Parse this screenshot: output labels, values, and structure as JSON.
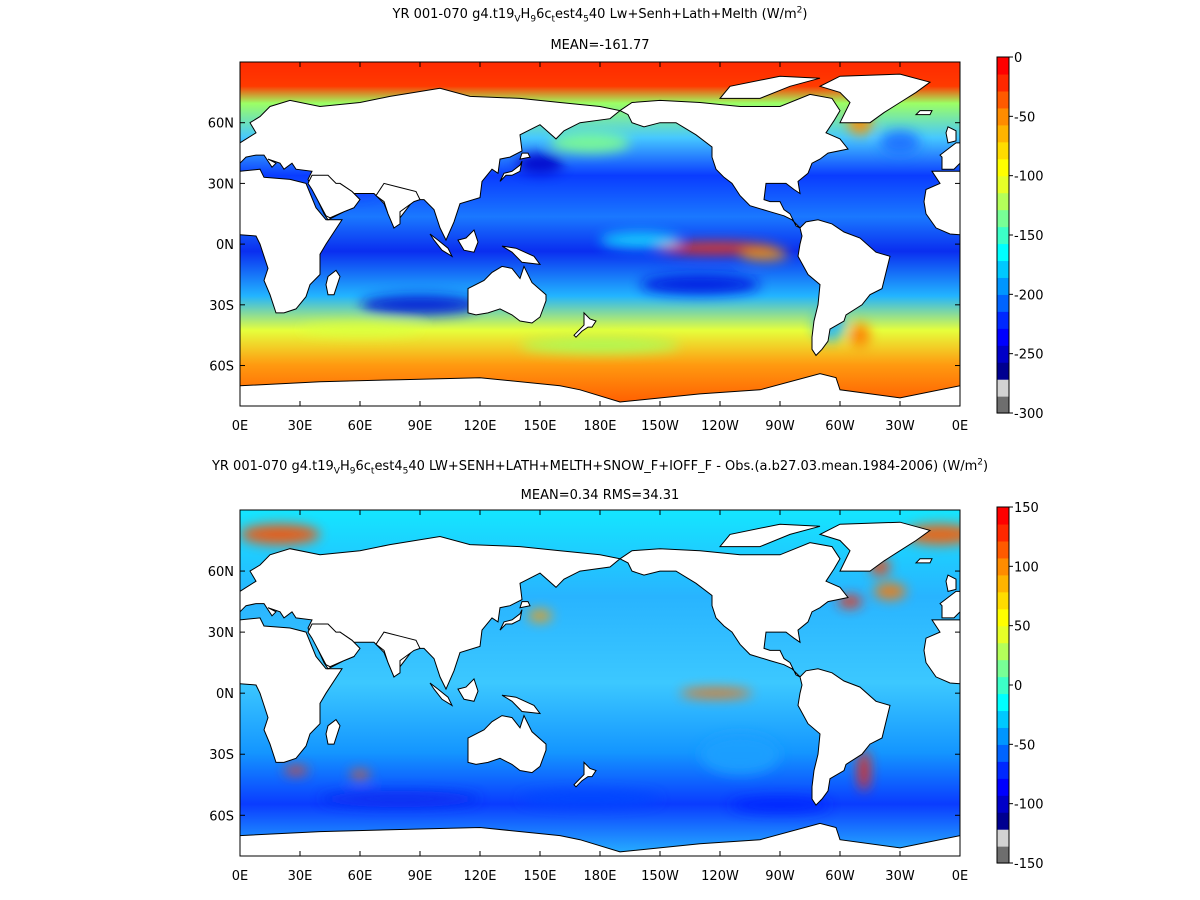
{
  "panels": [
    {
      "title_segments": [
        {
          "t": "YR 001-070 g4.t19"
        },
        {
          "t": "V",
          "sub": true
        },
        {
          "t": "H"
        },
        {
          "t": "9",
          "sub": true
        },
        {
          "t": "6c"
        },
        {
          "t": "t",
          "sub": true
        },
        {
          "t": "est4"
        },
        {
          "t": "5",
          "sub": true
        },
        {
          "t": "40 Lw+Senh+Lath+Melth (W/m"
        },
        {
          "t": "2",
          "sup": true
        },
        {
          "t": ")"
        }
      ],
      "stats": "MEAN=-161.77",
      "colorbar": {
        "labels": [
          "0",
          "-50",
          "-100",
          "-150",
          "-200",
          "-250",
          "-300"
        ],
        "colors": [
          "#6e6e6e",
          "#d2d2d2",
          "#000090",
          "#0000c8",
          "#0000ff",
          "#0028ff",
          "#0064ff",
          "#0096ff",
          "#00c8ff",
          "#00ffff",
          "#3cffc8",
          "#78ff96",
          "#b4ff5a",
          "#e6ff28",
          "#ffff00",
          "#ffdc00",
          "#ffb400",
          "#ff8c00",
          "#ff5a00",
          "#ff2800",
          "#ff0000"
        ]
      }
    },
    {
      "title_segments": [
        {
          "t": "YR 001-070 g4.t19"
        },
        {
          "t": "V",
          "sub": true
        },
        {
          "t": "H"
        },
        {
          "t": "9",
          "sub": true
        },
        {
          "t": "6c"
        },
        {
          "t": "t",
          "sub": true
        },
        {
          "t": "est4"
        },
        {
          "t": "5",
          "sub": true
        },
        {
          "t": "40 LW+SENH+LATH+MELTH+SNOW_F+IOFF_F - Obs.(a.b27.03.mean.1984-2006) (W/m"
        },
        {
          "t": "2",
          "sup": true
        },
        {
          "t": ")"
        }
      ],
      "stats": "MEAN=0.34 RMS=34.31",
      "colorbar": {
        "labels": [
          "150",
          "100",
          "50",
          "0",
          "-50",
          "-100",
          "-150"
        ],
        "colors": [
          "#6e6e6e",
          "#d2d2d2",
          "#000090",
          "#0000c8",
          "#0000ff",
          "#0028ff",
          "#0064ff",
          "#0096ff",
          "#00c8ff",
          "#00ffff",
          "#3cffc8",
          "#78ff96",
          "#b4ff5a",
          "#e6ff28",
          "#ffff00",
          "#ffdc00",
          "#ffb400",
          "#ff8c00",
          "#ff5a00",
          "#ff2800",
          "#ff0000"
        ]
      }
    }
  ],
  "lat_labels": [
    "60N",
    "30N",
    "0N",
    "30S",
    "60S"
  ],
  "lon_labels": [
    "0E",
    "30E",
    "60E",
    "90E",
    "120E",
    "150E",
    "180E",
    "150W",
    "120W",
    "90W",
    "60W",
    "30W",
    "0E"
  ]
}
